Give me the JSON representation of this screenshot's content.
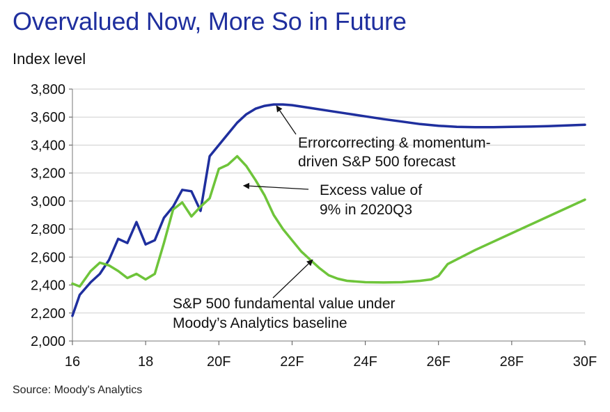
{
  "header": {
    "title": "Overvalued Now, More So in Future"
  },
  "chart_data": {
    "type": "line",
    "title": "Overvalued Now, More So in Future",
    "ylabel": "Index level",
    "xlabel": "",
    "source": "Source: Moody's Analytics",
    "ylim": [
      2000,
      3800
    ],
    "xlim": [
      2016,
      2030
    ],
    "y_ticks": [
      2000,
      2200,
      2400,
      2600,
      2800,
      3000,
      3200,
      3400,
      3600,
      3800
    ],
    "y_tick_labels": [
      "2,000",
      "2,200",
      "2,400",
      "2,600",
      "2,800",
      "3,000",
      "3,200",
      "3,400",
      "3,600",
      "3,800"
    ],
    "x_ticks": [
      2016,
      2018,
      2020,
      2022,
      2024,
      2026,
      2028,
      2030
    ],
    "x_tick_labels": [
      "16",
      "18",
      "20F",
      "22F",
      "24F",
      "26F",
      "28F",
      "30F"
    ],
    "grid": "horizontal",
    "legend": "none",
    "series": [
      {
        "color": "#1f2f9e",
        "x": [
          2016.0,
          2016.2,
          2016.5,
          2016.75,
          2017.0,
          2017.25,
          2017.5,
          2017.75,
          2018.0,
          2018.25,
          2018.5,
          2018.75,
          2019.0,
          2019.25,
          2019.5,
          2019.75,
          2020.0,
          2020.25,
          2020.5,
          2020.75,
          2021.0,
          2021.25,
          2021.5,
          2021.75,
          2022.0,
          2022.5,
          2023.0,
          2023.5,
          2024.0,
          2024.5,
          2025.0,
          2025.5,
          2026.0,
          2026.5,
          2027.0,
          2027.5,
          2028.0,
          2028.5,
          2029.0,
          2029.5,
          2030.0
        ],
        "y": [
          2180,
          2330,
          2420,
          2480,
          2580,
          2730,
          2700,
          2850,
          2690,
          2720,
          2880,
          2960,
          3080,
          3070,
          2930,
          3320,
          3400,
          3480,
          3560,
          3620,
          3660,
          3680,
          3690,
          3690,
          3685,
          3665,
          3645,
          3625,
          3605,
          3585,
          3568,
          3550,
          3538,
          3530,
          3528,
          3528,
          3530,
          3532,
          3535,
          3540,
          3545
        ]
      },
      {
        "color": "#6ec43a",
        "x": [
          2016.0,
          2016.2,
          2016.5,
          2016.75,
          2017.0,
          2017.25,
          2017.5,
          2017.75,
          2018.0,
          2018.25,
          2018.5,
          2018.75,
          2019.0,
          2019.25,
          2019.5,
          2019.75,
          2020.0,
          2020.25,
          2020.5,
          2020.75,
          2021.0,
          2021.25,
          2021.5,
          2021.75,
          2022.0,
          2022.25,
          2022.5,
          2022.75,
          2023.0,
          2023.25,
          2023.5,
          2024.0,
          2024.5,
          2025.0,
          2025.5,
          2025.8,
          2026.0,
          2026.25,
          2027.0,
          2028.0,
          2029.0,
          2030.0
        ],
        "y": [
          2410,
          2390,
          2500,
          2560,
          2540,
          2500,
          2450,
          2480,
          2440,
          2480,
          2700,
          2940,
          2990,
          2890,
          2960,
          3020,
          3230,
          3260,
          3320,
          3250,
          3150,
          3040,
          2900,
          2800,
          2720,
          2640,
          2580,
          2520,
          2470,
          2445,
          2430,
          2420,
          2418,
          2420,
          2430,
          2440,
          2465,
          2550,
          2650,
          2770,
          2890,
          3010
        ]
      }
    ],
    "annotations": [
      {
        "lines": [
          "Errorcorrecting & momentum-",
          "driven S&P 500 forecast"
        ],
        "arrow_to": [
          2021.5,
          3690
        ]
      },
      {
        "lines": [
          "Excess value of",
          "9% in 2020Q3"
        ],
        "arrow_to": [
          2020.6,
          3120
        ]
      },
      {
        "lines": [
          "S&P 500 fundamental value under",
          "Moody’s Analytics baseline"
        ],
        "arrow_to": [
          2022.6,
          2600
        ]
      }
    ]
  }
}
